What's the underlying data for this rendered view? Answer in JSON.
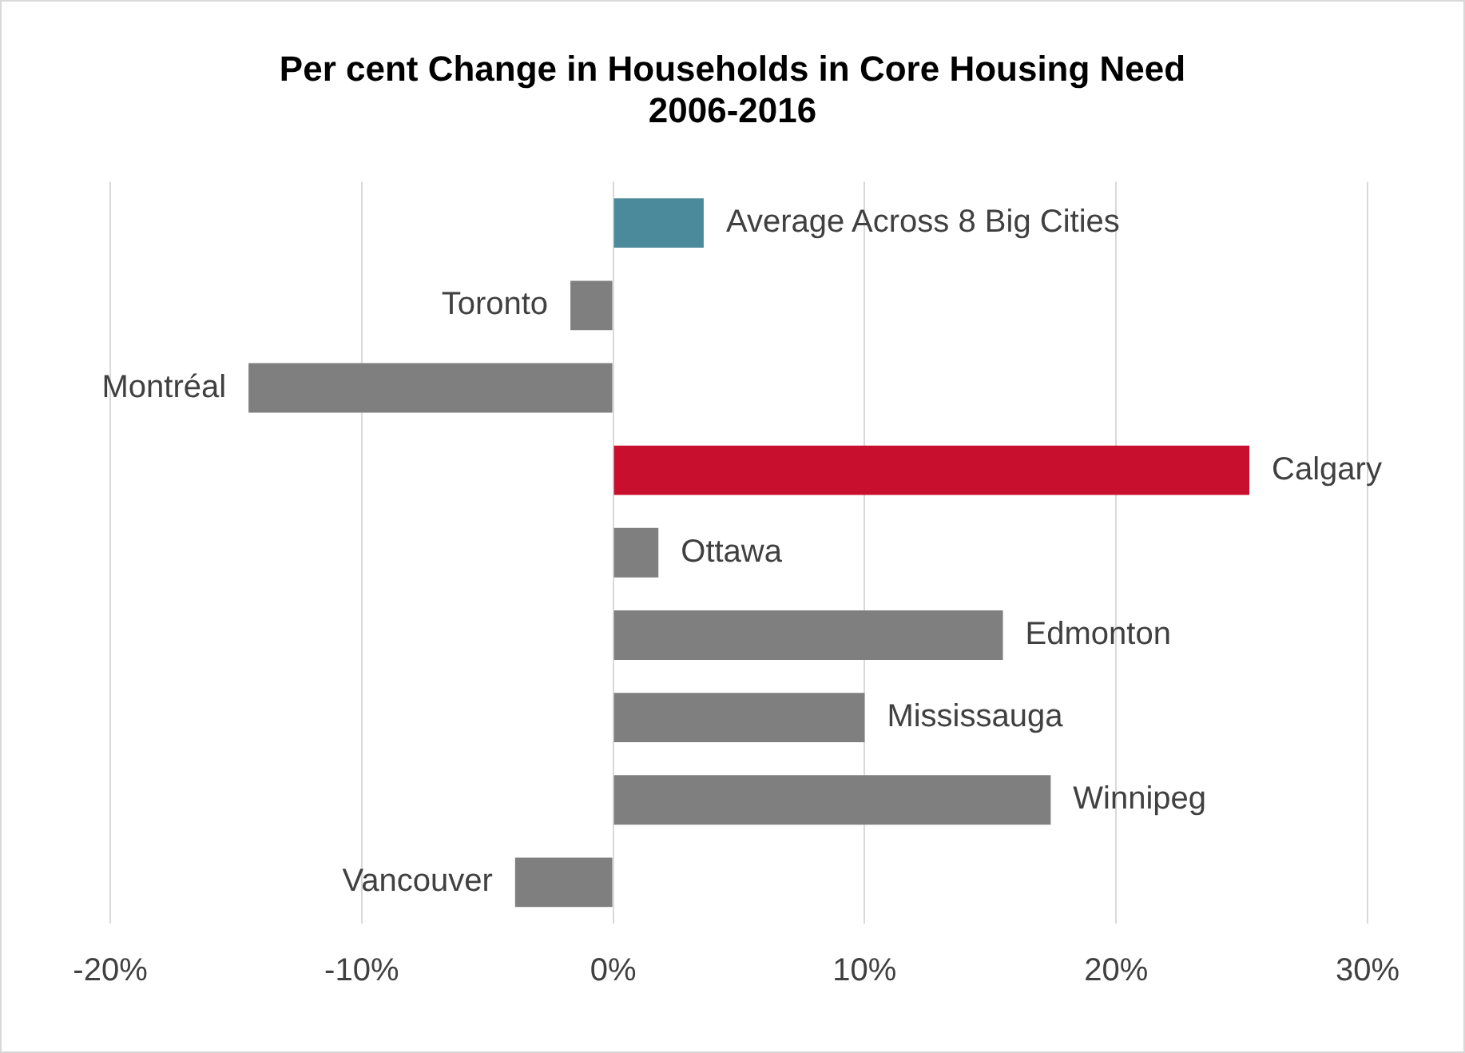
{
  "chart_data": {
    "type": "bar",
    "orientation": "horizontal",
    "title": "Per cent Change in Households in Core Housing Need\n2006-2016",
    "categories": [
      "Average Across 8 Big Cities",
      "Toronto",
      "Montréal",
      "Calgary",
      "Ottawa",
      "Edmonton",
      "Mississauga",
      "Winnipeg",
      "Vancouver"
    ],
    "values": [
      3.6,
      -1.7,
      -14.5,
      25.3,
      1.8,
      15.5,
      10.0,
      17.4,
      -3.9
    ],
    "colors": [
      "#4a8a9b",
      "#7f7f7f",
      "#7f7f7f",
      "#c8102e",
      "#7f7f7f",
      "#7f7f7f",
      "#7f7f7f",
      "#7f7f7f",
      "#7f7f7f"
    ],
    "xlim": [
      -20,
      30
    ],
    "xticks": [
      {
        "value": -20,
        "label": "-20%"
      },
      {
        "value": -10,
        "label": "-10%"
      },
      {
        "value": 0,
        "label": "0%"
      },
      {
        "value": 10,
        "label": "10%"
      },
      {
        "value": 20,
        "label": "20%"
      },
      {
        "value": 30,
        "label": "30%"
      }
    ],
    "grid": "x",
    "legend": false
  }
}
